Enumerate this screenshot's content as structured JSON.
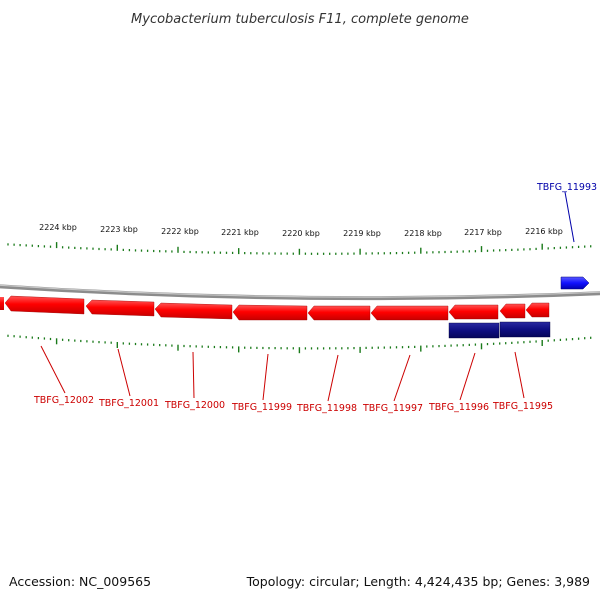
{
  "title": "Mycobacterium tuberculosis F11, complete genome",
  "footer": {
    "accession": "Accession: NC_009565",
    "summary": "Topology: circular; Length: 4,424,435 bp; Genes: 3,989"
  },
  "colors": {
    "forward_gene": "#1a1aff",
    "reverse_gene": "#ff1010",
    "alt_track_gene": "#0d0d80",
    "backbone": "#9a9a9a",
    "tick": "#1a7a1a",
    "label_forward": "#0000aa",
    "label_reverse": "#cc0000"
  },
  "scale": {
    "unit": "kbp",
    "direction": "decreasing-left-to-right",
    "labels": [
      "2224 kbp",
      "2223 kbp",
      "2222 kbp",
      "2221 kbp",
      "2220 kbp",
      "2219 kbp",
      "2218 kbp",
      "2217 kbp",
      "2216 kbp"
    ]
  },
  "genes": [
    {
      "name": "TBFG_11993",
      "strand": "forward",
      "track": "outer"
    },
    {
      "name": "TBFG_12002",
      "strand": "reverse",
      "track": "inner"
    },
    {
      "name": "TBFG_12001",
      "strand": "reverse",
      "track": "inner"
    },
    {
      "name": "TBFG_12000",
      "strand": "reverse",
      "track": "inner"
    },
    {
      "name": "TBFG_11999",
      "strand": "reverse",
      "track": "inner"
    },
    {
      "name": "TBFG_11998",
      "strand": "reverse",
      "track": "inner"
    },
    {
      "name": "TBFG_11997",
      "strand": "reverse",
      "track": "inner"
    },
    {
      "name": "TBFG_11996",
      "strand": "reverse",
      "track": "inner"
    },
    {
      "name": "TBFG_11995",
      "strand": "reverse",
      "track": "inner"
    }
  ]
}
